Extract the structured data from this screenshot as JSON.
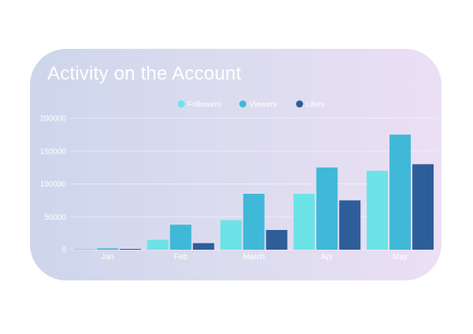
{
  "chart_data": {
    "type": "bar",
    "title": "Activity on the Account",
    "categories": [
      "Jan",
      "Feb",
      "March",
      "Apr",
      "May"
    ],
    "series": [
      {
        "name": "Followers",
        "color": "#6ce3e6",
        "values": [
          500,
          15000,
          45000,
          85000,
          120000
        ]
      },
      {
        "name": "Viewers",
        "color": "#40b8d8",
        "values": [
          2000,
          38000,
          85000,
          125000,
          175000
        ]
      },
      {
        "name": "Likes",
        "color": "#2e5e9a",
        "values": [
          1000,
          10000,
          30000,
          75000,
          130000
        ]
      }
    ],
    "ylim": [
      0,
      200000
    ],
    "yticks": [
      "0",
      "50000",
      "100000",
      "150000",
      "200000"
    ],
    "grid": true,
    "legend_position": "top-center",
    "xlabel": "",
    "ylabel": ""
  }
}
